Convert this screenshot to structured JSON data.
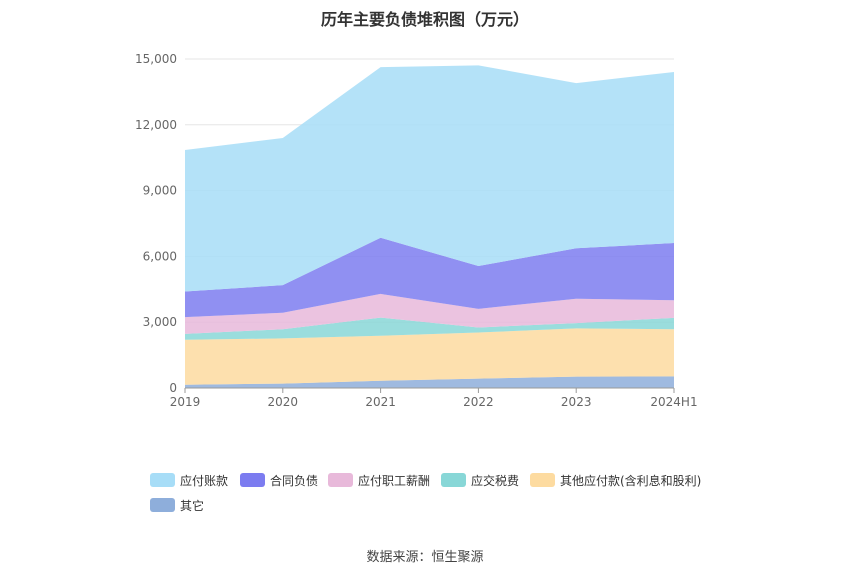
{
  "title": "历年主要负债堆积图（万元）",
  "source": "数据来源：恒生聚源",
  "chart_data": {
    "type": "area",
    "stacked": true,
    "title": "历年主要负债堆积图（万元）",
    "x": [
      "2019",
      "2020",
      "2021",
      "2022",
      "2023",
      "2024H1"
    ],
    "ylim": [
      0,
      15000
    ],
    "yticks": [
      0,
      3000,
      6000,
      9000,
      12000,
      15000
    ],
    "ytick_labels": [
      "0",
      "3,000",
      "6,000",
      "9,000",
      "12,000",
      "15,000"
    ],
    "grid": true,
    "legend_position": "bottom",
    "series": [
      {
        "name": "其它",
        "values": [
          150,
          200,
          330,
          430,
          520,
          530
        ],
        "color": "#8eaedb"
      },
      {
        "name": "其他应付款(含利息和股利)",
        "values": [
          2050,
          2060,
          2050,
          2100,
          2200,
          2150
        ],
        "color": "#fddba0"
      },
      {
        "name": "应交税费",
        "values": [
          270,
          420,
          830,
          230,
          240,
          520
        ],
        "color": "#88d7d7"
      },
      {
        "name": "应付职工薪酬",
        "values": [
          760,
          750,
          1080,
          850,
          1110,
          800
        ],
        "color": "#e8b9da"
      },
      {
        "name": "合同负债",
        "values": [
          1170,
          1260,
          2560,
          1950,
          2300,
          2610
        ],
        "color": "#7c7cf0"
      },
      {
        "name": "应付账款",
        "values": [
          6450,
          6710,
          7780,
          9150,
          7530,
          7800
        ],
        "color": "#a7ddf7"
      }
    ],
    "legend_order": [
      "应付账款",
      "合同负债",
      "应付职工薪酬",
      "应交税费",
      "其他应付款(含利息和股利)",
      "其它"
    ]
  }
}
